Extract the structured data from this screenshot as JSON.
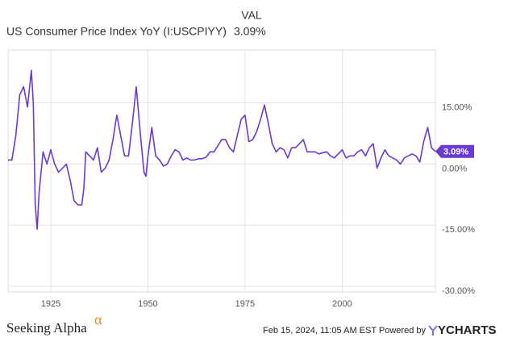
{
  "header": {
    "column": "VAL",
    "name": "US Consumer Price Index YoY (I:USCPIYY)"
  },
  "chart_data": {
    "type": "line",
    "x": [
      1914,
      1915,
      1916,
      1917,
      1918,
      1919,
      1920,
      1920.5,
      1921,
      1921.5,
      1922,
      1923,
      1924,
      1925,
      1926,
      1927,
      1928,
      1929,
      1930,
      1931,
      1932,
      1933,
      1933.5,
      1934,
      1935,
      1936,
      1937,
      1938,
      1939,
      1940,
      1941,
      1942,
      1943,
      1944,
      1945,
      1946,
      1947,
      1948,
      1949,
      1949.5,
      1950,
      1951,
      1952,
      1953,
      1954,
      1955,
      1956,
      1957,
      1958,
      1959,
      1960,
      1961,
      1962,
      1963,
      1964,
      1965,
      1966,
      1967,
      1968,
      1969,
      1970,
      1971,
      1972,
      1973,
      1974,
      1975,
      1976,
      1977,
      1978,
      1979,
      1980,
      1981,
      1982,
      1983,
      1984,
      1985,
      1986,
      1987,
      1988,
      1989,
      1990,
      1991,
      1992,
      1993,
      1994,
      1995,
      1996,
      1997,
      1998,
      1999,
      2000,
      2001,
      2002,
      2003,
      2004,
      2005,
      2006,
      2007,
      2008,
      2009,
      2010,
      2011,
      2012,
      2013,
      2014,
      2015,
      2016,
      2017,
      2018,
      2019,
      2020,
      2021,
      2022,
      2023,
      2024
    ],
    "series": [
      {
        "name": "US Consumer Price Index YoY (I:USCPIYY)",
        "color": "#6a3ad2",
        "values": [
          1,
          1,
          7,
          17,
          19,
          14,
          23,
          15,
          -10,
          -16,
          -7,
          3,
          0,
          3.5,
          0,
          -2,
          -1,
          0,
          -4,
          -9,
          -10,
          -10,
          -6,
          3,
          2,
          1,
          4,
          -2,
          -1,
          1,
          6,
          12,
          7,
          2,
          2,
          10,
          19,
          8,
          -2,
          -3,
          2,
          9,
          2,
          1,
          -0.5,
          0,
          2,
          3.5,
          3,
          1,
          1.5,
          1,
          1,
          1.3,
          1.3,
          1.7,
          3,
          3,
          4.5,
          6,
          6,
          4,
          3,
          7,
          11,
          12,
          5.5,
          6,
          8,
          11,
          14.5,
          10,
          5,
          3,
          4,
          3.5,
          1.5,
          4,
          4,
          5,
          6,
          3,
          3,
          3,
          2.5,
          2.8,
          3,
          2,
          1.5,
          2.5,
          3.5,
          1.5,
          2,
          2,
          3,
          3.5,
          2,
          4,
          5,
          -1,
          1.5,
          3.5,
          2,
          1.5,
          1,
          0,
          1.5,
          2,
          2.5,
          2,
          0.5,
          5.5,
          9,
          4,
          3.09
        ]
      }
    ],
    "latest": {
      "value": 3.09,
      "label": "3.09%"
    },
    "xlim": [
      1914,
      2024
    ],
    "ylim": [
      -31.4,
      28
    ],
    "xticks": [
      1925,
      1950,
      1975,
      2000
    ],
    "yticks": [
      {
        "value": -30,
        "label": "-30.00%"
      },
      {
        "value": -15,
        "label": "-15.00%"
      },
      {
        "value": 0,
        "label": "0.00%"
      },
      {
        "value": 15,
        "label": "15.00%"
      }
    ],
    "grid": true
  },
  "footer": {
    "brand": "Seeking Alpha",
    "brand_mark": "α",
    "timestamp": "Feb 15, 2024, 11:05 AM EST Powered by",
    "provider": "YCHARTS"
  }
}
